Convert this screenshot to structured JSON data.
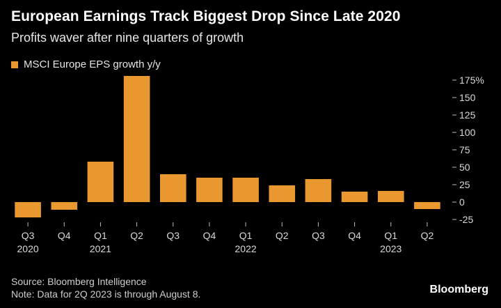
{
  "header": {
    "title": "European Earnings Track Biggest Drop Since Late 2020",
    "subtitle": "Profits waver after nine quarters of growth"
  },
  "colors": {
    "background": "#000000",
    "bar": "#E8982E",
    "text": "#ffffff",
    "muted": "#cfcfcf"
  },
  "chart_data": {
    "type": "bar",
    "title": "European Earnings Track Biggest Drop Since Late 2020",
    "subtitle": "Profits waver after nine quarters of growth",
    "categories": [
      "Q3",
      "Q4",
      "Q1",
      "Q2",
      "Q3",
      "Q4",
      "Q1",
      "Q2",
      "Q3",
      "Q4",
      "Q1",
      "Q2"
    ],
    "year_labels": [
      "2020",
      "",
      "2021",
      "",
      "",
      "",
      "2022",
      "",
      "",
      "",
      "2023",
      ""
    ],
    "series": [
      {
        "name": "MSCI Europe EPS growth y/y",
        "values": [
          -22,
          -11,
          58,
          181,
          40,
          35,
          35,
          24,
          33,
          15,
          16,
          -10
        ]
      }
    ],
    "y_ticks": [
      -25,
      0,
      25,
      50,
      75,
      100,
      125,
      150,
      175
    ],
    "y_tick_labels": [
      "-25",
      "0",
      "25",
      "50",
      "75",
      "100",
      "125",
      "150",
      "175%"
    ],
    "ylim": [
      -25,
      175
    ],
    "xlabel": "",
    "ylabel": "",
    "grid": false,
    "legend_position": "top-left",
    "y_axis_side": "right"
  },
  "footer": {
    "source": "Source: Bloomberg Intelligence",
    "note": "Note: Data for 2Q 2023 is through August 8.",
    "brand": "Bloomberg"
  }
}
